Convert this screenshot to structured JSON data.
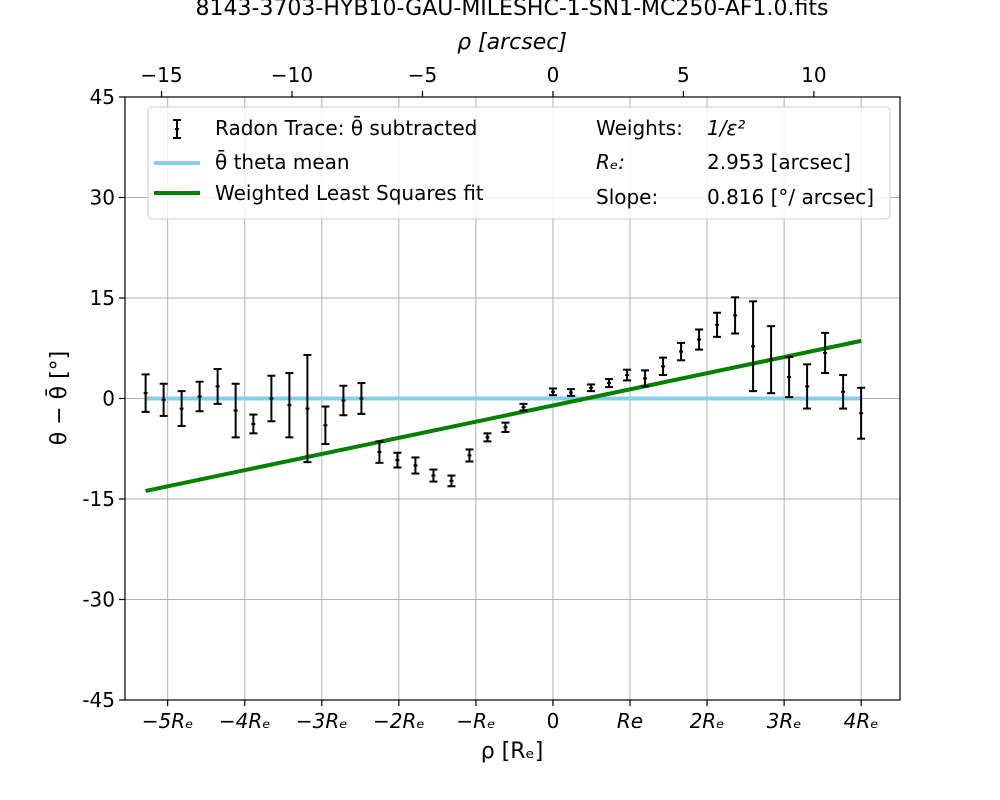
{
  "chart_data": {
    "type": "scatter",
    "title": "8143-3703-HYB10-GAU-MILESHC-1-SN1-MC250-AF1.0.fits",
    "xlabel_top": "ρ [arcsec]",
    "xlabel_bottom": "ρ [Rₑ]",
    "ylabel": "θ − θ̄ [°]",
    "xlim_arcsec": [
      -16.4,
      13.3
    ],
    "ylim": [
      -45,
      45
    ],
    "grid": true,
    "legend_placement": "top",
    "top_ticks": [
      {
        "value": -15,
        "label": "−15"
      },
      {
        "value": -10,
        "label": "−10"
      },
      {
        "value": -5,
        "label": "−5"
      },
      {
        "value": 0,
        "label": "0"
      },
      {
        "value": 5,
        "label": "5"
      },
      {
        "value": 10,
        "label": "10"
      }
    ],
    "bottom_ticks": [
      {
        "value": -5,
        "label": "−5Rₑ"
      },
      {
        "value": -4,
        "label": "−4Rₑ"
      },
      {
        "value": -3,
        "label": "−3Rₑ"
      },
      {
        "value": -2,
        "label": "−2Rₑ"
      },
      {
        "value": -1,
        "label": "−Rₑ"
      },
      {
        "value": 0,
        "label": "0"
      },
      {
        "value": 1,
        "label": "Re"
      },
      {
        "value": 2,
        "label": "2Rₑ"
      },
      {
        "value": 3,
        "label": "3Rₑ"
      },
      {
        "value": 4,
        "label": "4Rₑ"
      }
    ],
    "y_ticks": [
      {
        "value": 45,
        "label": "45"
      },
      {
        "value": 30,
        "label": "30"
      },
      {
        "value": 15,
        "label": "15"
      },
      {
        "value": 0,
        "label": "0"
      },
      {
        "value": -15,
        "label": "-15"
      },
      {
        "value": -30,
        "label": "-30"
      },
      {
        "value": -45,
        "label": "-45"
      }
    ],
    "series": [
      {
        "name": "Radon Trace: θ̄ subtracted",
        "kind": "errorbar",
        "color": "#000000",
        "points": [
          {
            "x": -15.61,
            "y": 0.8,
            "err": 2.8
          },
          {
            "x": -14.92,
            "y": -0.2,
            "err": 2.4
          },
          {
            "x": -14.23,
            "y": -1.5,
            "err": 2.6
          },
          {
            "x": -13.54,
            "y": 0.3,
            "err": 2.2
          },
          {
            "x": -12.85,
            "y": 1.8,
            "err": 2.6
          },
          {
            "x": -12.16,
            "y": -1.8,
            "err": 4.0
          },
          {
            "x": -11.48,
            "y": -3.8,
            "err": 1.4
          },
          {
            "x": -10.79,
            "y": 0.0,
            "err": 3.4
          },
          {
            "x": -10.1,
            "y": -1.0,
            "err": 4.8
          },
          {
            "x": -9.41,
            "y": -1.5,
            "err": 8.0
          },
          {
            "x": -8.72,
            "y": -4.0,
            "err": 2.8
          },
          {
            "x": -8.03,
            "y": -0.3,
            "err": 2.2
          },
          {
            "x": -7.34,
            "y": 0.0,
            "err": 2.3
          },
          {
            "x": -6.65,
            "y": -8.0,
            "err": 1.6
          },
          {
            "x": -5.96,
            "y": -9.2,
            "err": 1.1
          },
          {
            "x": -5.27,
            "y": -10.0,
            "err": 1.2
          },
          {
            "x": -4.58,
            "y": -11.5,
            "err": 0.9
          },
          {
            "x": -3.89,
            "y": -12.3,
            "err": 0.8
          },
          {
            "x": -3.2,
            "y": -8.5,
            "err": 0.9
          },
          {
            "x": -2.51,
            "y": -5.8,
            "err": 0.6
          },
          {
            "x": -1.82,
            "y": -4.3,
            "err": 0.7
          },
          {
            "x": -1.13,
            "y": -1.3,
            "err": 0.5
          },
          {
            "x": 0.0,
            "y": 1.0,
            "err": 0.5
          },
          {
            "x": 0.69,
            "y": 0.9,
            "err": 0.5
          },
          {
            "x": 1.46,
            "y": 1.6,
            "err": 0.5
          },
          {
            "x": 2.15,
            "y": 2.3,
            "err": 0.6
          },
          {
            "x": 2.84,
            "y": 3.5,
            "err": 0.8
          },
          {
            "x": 3.53,
            "y": 3.0,
            "err": 1.2
          },
          {
            "x": 4.22,
            "y": 4.8,
            "err": 1.3
          },
          {
            "x": 4.91,
            "y": 7.0,
            "err": 1.3
          },
          {
            "x": 5.6,
            "y": 8.8,
            "err": 1.5
          },
          {
            "x": 6.29,
            "y": 11.0,
            "err": 1.8
          },
          {
            "x": 6.98,
            "y": 12.4,
            "err": 2.7
          },
          {
            "x": 7.67,
            "y": 7.8,
            "err": 6.7
          },
          {
            "x": 8.36,
            "y": 5.8,
            "err": 5.0
          },
          {
            "x": 9.05,
            "y": 3.2,
            "err": 3.0
          },
          {
            "x": 9.74,
            "y": 1.8,
            "err": 3.3
          },
          {
            "x": 10.43,
            "y": 6.8,
            "err": 3.0
          },
          {
            "x": 11.12,
            "y": 1.0,
            "err": 2.5
          },
          {
            "x": 11.81,
            "y": -2.2,
            "err": 3.8
          }
        ]
      },
      {
        "name": "θ̄ theta mean",
        "kind": "line",
        "color": "#87ceeb",
        "points": [
          {
            "x": -15.61,
            "y": 0
          },
          {
            "x": 11.81,
            "y": 0
          }
        ]
      },
      {
        "name": "Weighted Least Squares fit",
        "kind": "line",
        "color": "#008000",
        "points": [
          {
            "x": -15.61,
            "y": -13.8
          },
          {
            "x": 11.81,
            "y": 8.6
          }
        ]
      }
    ],
    "info": [
      {
        "key": "Weights:",
        "value": "1/ε²"
      },
      {
        "key": "Rₑ:",
        "value": "2.953 [arcsec]"
      },
      {
        "key": "Slope:",
        "value": "0.816 [°/ arcsec]"
      }
    ],
    "re_arcsec": 2.953
  }
}
